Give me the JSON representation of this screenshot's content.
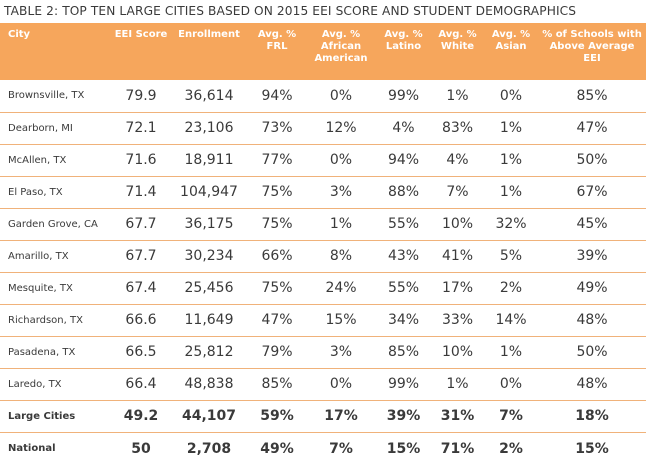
{
  "title": "TABLE 2: TOP TEN LARGE CITIES BASED ON 2015 EEI SCORE AND STUDENT DEMOGRAPHICS",
  "headers": [
    "City",
    "EEI Score",
    "Enrollment",
    "Avg. % FRL",
    "Avg. % African American",
    "Avg. % Latino",
    "Avg. % White",
    "Avg. % Asian",
    "% of Schools with Above Average EEI"
  ],
  "rows": [
    {
      "city": "Brownsville, TX",
      "cells": [
        "79.9",
        "36,614",
        "94%",
        "0%",
        "99%",
        "1%",
        "0%",
        "85%"
      ]
    },
    {
      "city": "Dearborn, MI",
      "cells": [
        "72.1",
        "23,106",
        "73%",
        "12%",
        "4%",
        "83%",
        "1%",
        "47%"
      ]
    },
    {
      "city": "McAllen, TX",
      "cells": [
        "71.6",
        "18,911",
        "77%",
        "0%",
        "94%",
        "4%",
        "1%",
        "50%"
      ]
    },
    {
      "city": "El Paso, TX",
      "cells": [
        "71.4",
        "104,947",
        "75%",
        "3%",
        "88%",
        "7%",
        "1%",
        "67%"
      ]
    },
    {
      "city": "Garden Grove, CA",
      "cells": [
        "67.7",
        "36,175",
        "75%",
        "1%",
        "55%",
        "10%",
        "32%",
        "45%"
      ]
    },
    {
      "city": "Amarillo, TX",
      "cells": [
        "67.7",
        "30,234",
        "66%",
        "8%",
        "43%",
        "41%",
        "5%",
        "39%"
      ]
    },
    {
      "city": "Mesquite, TX",
      "cells": [
        "67.4",
        "25,456",
        "75%",
        "24%",
        "55%",
        "17%",
        "2%",
        "49%"
      ]
    },
    {
      "city": "Richardson, TX",
      "cells": [
        "66.6",
        "11,649",
        "47%",
        "15%",
        "34%",
        "33%",
        "14%",
        "48%"
      ]
    },
    {
      "city": "Pasadena, TX",
      "cells": [
        "66.5",
        "25,812",
        "79%",
        "3%",
        "85%",
        "10%",
        "1%",
        "50%"
      ]
    },
    {
      "city": "Laredo, TX",
      "cells": [
        "66.4",
        "48,838",
        "85%",
        "0%",
        "99%",
        "1%",
        "0%",
        "48%"
      ]
    }
  ],
  "summary_rows": [
    {
      "city": "Large Cities",
      "cells": [
        "49.2",
        "44,107",
        "59%",
        "17%",
        "39%",
        "31%",
        "7%",
        "18%"
      ]
    },
    {
      "city": "National",
      "cells": [
        "50",
        "2,708",
        "49%",
        "7%",
        "15%",
        "71%",
        "2%",
        "15%"
      ]
    }
  ],
  "colors": {
    "header_bg": "#f6a65c",
    "rule": "#f0b27a",
    "text": "#3a3a3a"
  }
}
